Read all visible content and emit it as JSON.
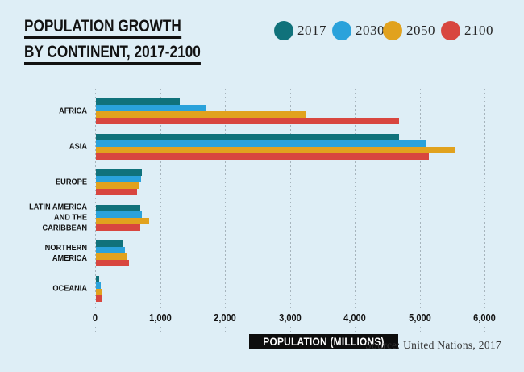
{
  "title": {
    "line1": "POPULATION GROWTH",
    "line2": "BY CONTINENT, 2017-2100"
  },
  "legend": {
    "items": [
      {
        "label": "2017",
        "color": "#10727b"
      },
      {
        "label": "2030",
        "color": "#2aa2db"
      },
      {
        "label": "2050",
        "color": "#e1a21e"
      },
      {
        "label": "2100",
        "color": "#d8463f"
      }
    ]
  },
  "chart_data": {
    "type": "bar",
    "orientation": "horizontal",
    "title": "POPULATION GROWTH BY CONTINENT, 2017-2100",
    "categories": [
      "AFRICA",
      "ASIA",
      "EUROPE",
      "LATIN AMERICA\nAND THE CARIBBEAN",
      "NORTHERN\nAMERICA",
      "OCEANIA"
    ],
    "series": [
      {
        "name": "2017",
        "color": "#10727b",
        "values": [
          1300,
          4680,
          720,
          690,
          410,
          50
        ]
      },
      {
        "name": "2030",
        "color": "#2aa2db",
        "values": [
          1690,
          5090,
          700,
          715,
          455,
          80
        ]
      },
      {
        "name": "2050",
        "color": "#e1a21e",
        "values": [
          3240,
          5540,
          670,
          820,
          490,
          95
        ]
      },
      {
        "name": "2100",
        "color": "#d8463f",
        "values": [
          4680,
          5140,
          640,
          690,
          520,
          110
        ]
      }
    ],
    "xlabel": "POPULATION (MILLIONS)",
    "xlim": [
      0,
      6000
    ],
    "x_ticks": [
      {
        "value": 0,
        "label": "0"
      },
      {
        "value": 1000,
        "label": "1,000"
      },
      {
        "value": 2000,
        "label": "2,000"
      },
      {
        "value": 3000,
        "label": "3,000"
      },
      {
        "value": 4000,
        "label": "4,000"
      },
      {
        "value": 5000,
        "label": "5,000"
      },
      {
        "value": 6000,
        "label": "6,000"
      }
    ],
    "grid": "dashed-vertical",
    "legend_position": "top-right"
  },
  "axis": {
    "title": "POPULATION (MILLIONS)"
  },
  "source": {
    "text": "Source: United Nations, 2017"
  }
}
